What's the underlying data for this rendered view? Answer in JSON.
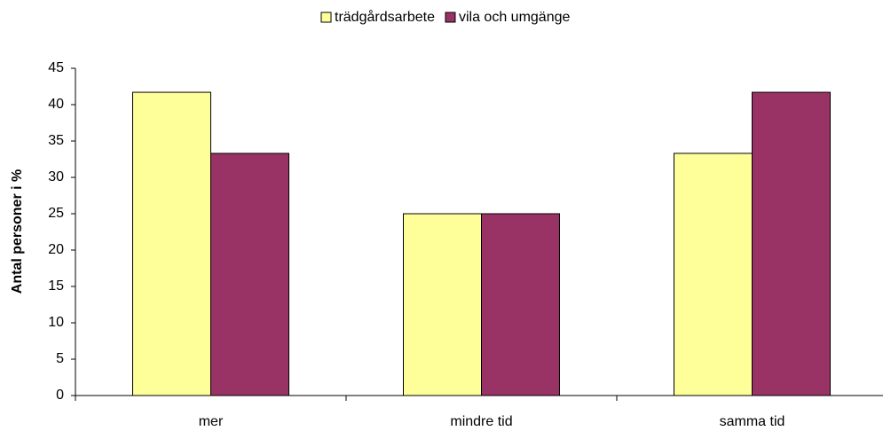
{
  "chart_data": {
    "type": "bar",
    "y_label": "Antal personer i %",
    "categories": [
      "mer",
      "mindre tid",
      "samma tid"
    ],
    "series": [
      {
        "name": "trädgårdsarbete",
        "color": "#ffff99",
        "values": [
          41.7,
          25,
          33.3
        ]
      },
      {
        "name": "vila och umgänge",
        "color": "#993366",
        "values": [
          33.3,
          25,
          41.7
        ]
      }
    ],
    "ylim": [
      0,
      45
    ],
    "yticks": [
      0,
      5,
      10,
      15,
      20,
      25,
      30,
      35,
      40,
      45
    ],
    "legend": "top"
  }
}
